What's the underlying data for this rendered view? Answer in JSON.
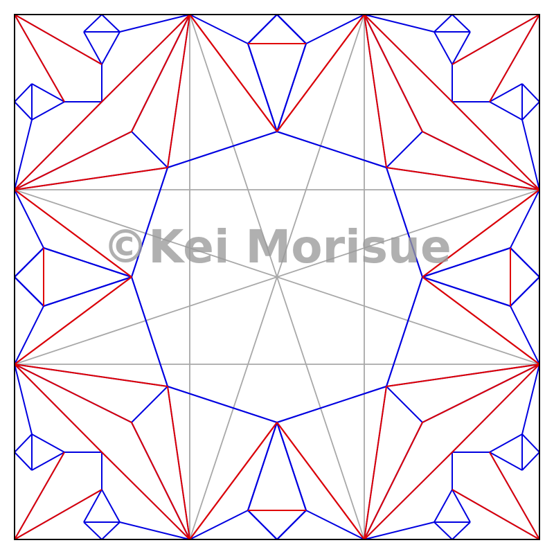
{
  "watermark": {
    "text": "©Kei Morisue",
    "color": "#9a9a9a"
  },
  "legend_colors": {
    "mountain": "#e00000",
    "valley": "#0000e0",
    "auxiliary": "#a8a8a8",
    "border": "#000000"
  }
}
